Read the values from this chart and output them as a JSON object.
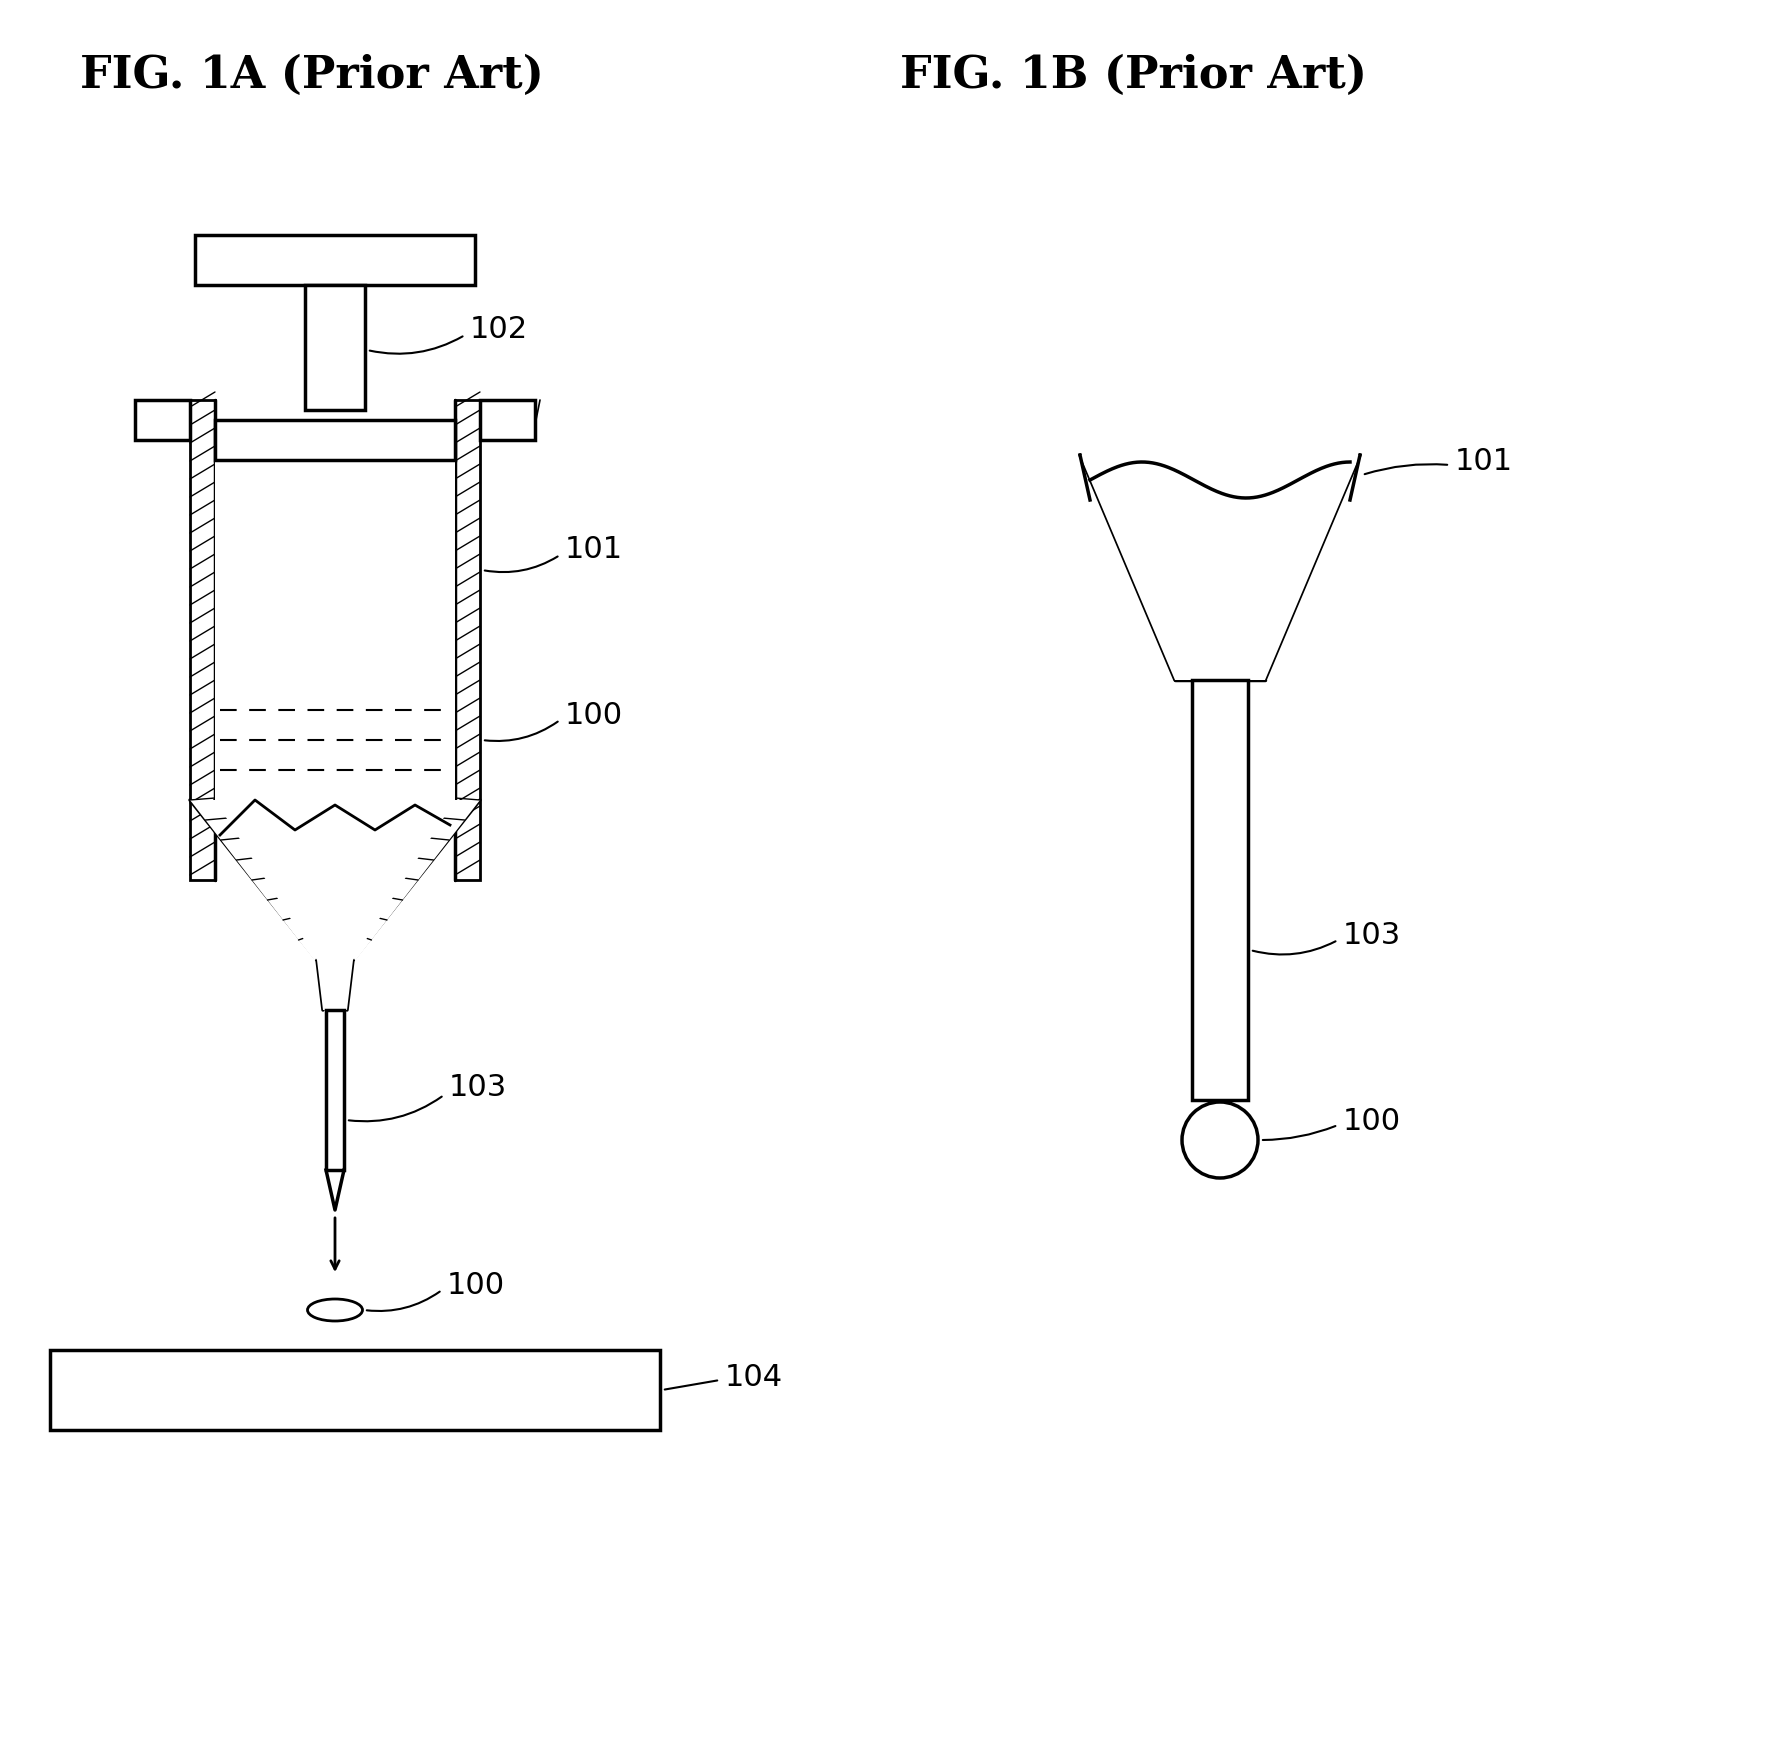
{
  "fig1a_title": "FIG. 1A (Prior Art)",
  "fig1b_title": "FIG. 1B (Prior Art)",
  "label_100a": "100",
  "label_101": "101",
  "label_102": "102",
  "label_103a": "103",
  "label_104": "104",
  "label_100b": "100",
  "label_101b": "101",
  "label_103b": "103",
  "bg_color": "#ffffff",
  "line_color": "#000000",
  "hatch_color": "#000000",
  "title_fontsize": 32,
  "label_fontsize": 22
}
